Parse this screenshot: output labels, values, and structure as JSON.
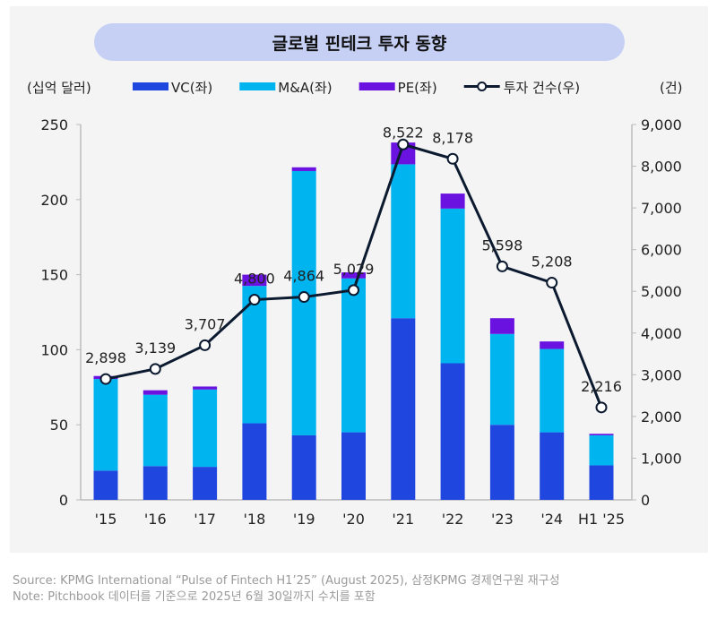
{
  "chart_data": {
    "type": "bar",
    "title": "글로벌 핀테크 투자 동향",
    "stacked": true,
    "categories": [
      "'15",
      "'16",
      "'17",
      "'18",
      "'19",
      "'20",
      "'21",
      "'22",
      "'23",
      "'24",
      "H1 '25"
    ],
    "y_left": {
      "unit_label": "(십억 달러)",
      "range": [
        0,
        250
      ],
      "ticks": [
        0,
        50,
        100,
        150,
        200,
        250
      ]
    },
    "y_right": {
      "unit_label": "(건)",
      "range": [
        0,
        9000
      ],
      "ticks": [
        0,
        1000,
        2000,
        3000,
        4000,
        5000,
        6000,
        7000,
        8000,
        9000
      ],
      "tick_labels": [
        "0",
        "1,000",
        "2,000",
        "3,000",
        "4,000",
        "5,000",
        "6,000",
        "7,000",
        "8,000",
        "9,000"
      ]
    },
    "series": [
      {
        "name": "VC(좌)",
        "type": "bar",
        "axis": "left",
        "color": "#1f47e0",
        "values": [
          19.5,
          22.5,
          22,
          51,
          43,
          45,
          121,
          91,
          50,
          45,
          23
        ]
      },
      {
        "name": "M&A(좌)",
        "type": "bar",
        "axis": "left",
        "color": "#00b4f0",
        "values": [
          61,
          47.5,
          51.5,
          91.5,
          176,
          102.5,
          102.5,
          103,
          60.5,
          55.5,
          20
        ]
      },
      {
        "name": "PE(좌)",
        "type": "bar",
        "axis": "left",
        "color": "#6a12e0",
        "values": [
          2,
          3,
          2,
          7.5,
          2.5,
          4,
          14.5,
          10,
          10.5,
          5,
          1
        ]
      },
      {
        "name": "투자 건수(우)",
        "type": "line",
        "axis": "right",
        "color": "#0c1a30",
        "values": [
          2898,
          3139,
          3707,
          4800,
          4864,
          5029,
          8522,
          8178,
          5598,
          5208,
          2216
        ],
        "labels": [
          "2,898",
          "3,139",
          "3,707",
          "4,800",
          "4,864",
          "5,029",
          "8,522",
          "8,178",
          "5,598",
          "5,208",
          "2,216"
        ]
      }
    ],
    "legend": "top",
    "grid": false
  },
  "footnotes": {
    "source": "Source: KPMG International “Pulse of Fintech H1’25” (August 2025), 삼정KPMG 경제연구원 재구성",
    "note": "Note: Pitchbook 데이터를 기준으로 2025년 6월 30일까지 수치를 포함"
  }
}
